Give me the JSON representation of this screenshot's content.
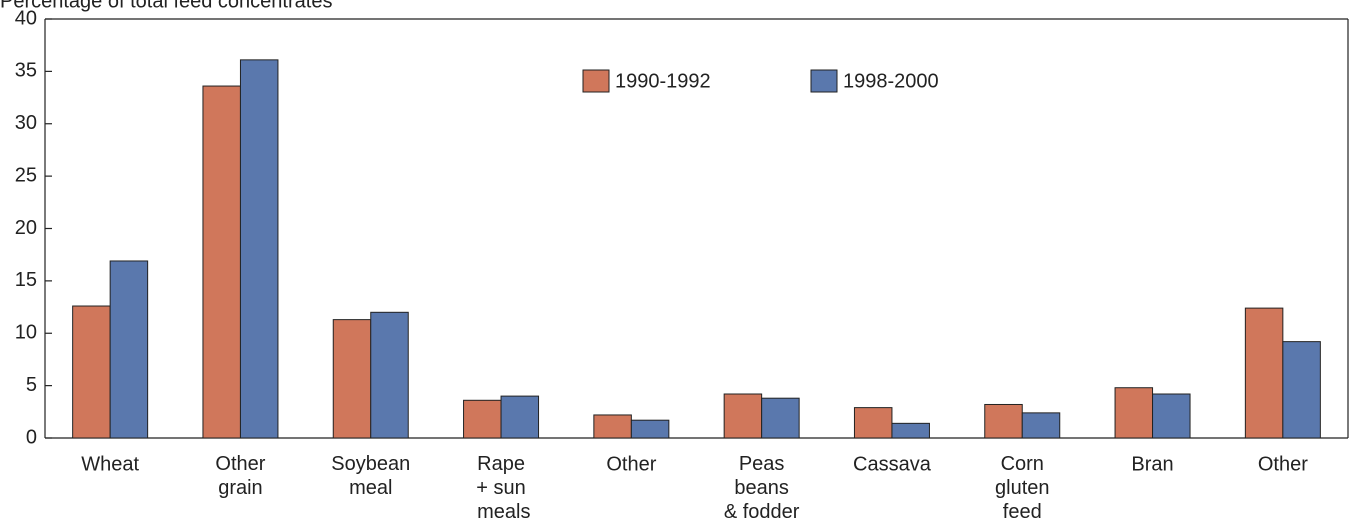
{
  "chart_data": {
    "type": "bar",
    "title": "Percentage of total feed concentrates",
    "categories": [
      "Wheat",
      "Other\ngrain",
      "Soybean\nmeal",
      "Rape\n+ sun\n  meals",
      "Other",
      "Peas\nbeans\n& fodder",
      "Cassava",
      "Corn\ngluten\nfeed",
      "Bran",
      "Other"
    ],
    "series": [
      {
        "name": "1990-1992",
        "color": "#d0775b",
        "values": [
          12.6,
          33.6,
          11.3,
          3.6,
          2.2,
          4.2,
          2.9,
          3.2,
          4.8,
          12.4
        ]
      },
      {
        "name": "1998-2000",
        "color": "#5a78ad",
        "values": [
          16.9,
          36.1,
          12.0,
          4.0,
          1.7,
          3.8,
          1.4,
          2.4,
          4.2,
          9.2
        ]
      }
    ],
    "ylim": [
      0,
      40
    ],
    "yticks": [
      0,
      5,
      10,
      15,
      20,
      25,
      30,
      35,
      40
    ],
    "grid": false
  }
}
